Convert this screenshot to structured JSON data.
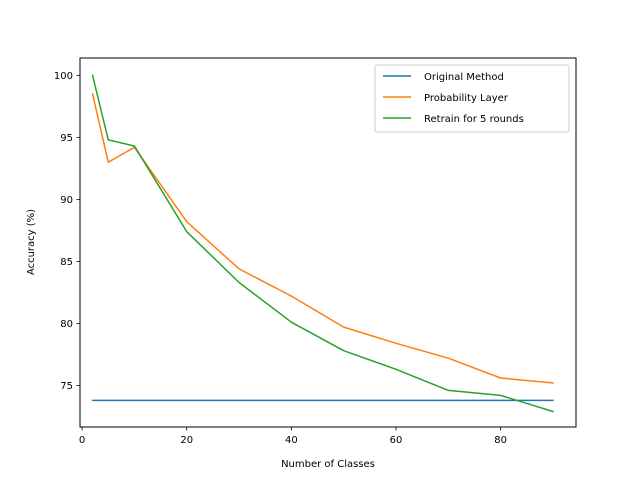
{
  "chart_data": {
    "type": "line",
    "xlabel": "Number of Classes",
    "ylabel": "Accuracy (%)",
    "xlim": [
      -0.4,
      94.4
    ],
    "ylim": [
      71.65,
      101.4
    ],
    "xticks": [
      0,
      20,
      40,
      60,
      80
    ],
    "yticks": [
      75,
      80,
      85,
      90,
      95,
      100
    ],
    "grid": false,
    "legend_position": "top-right",
    "series": [
      {
        "name": "Original Method",
        "color": "#1f77b4",
        "x": [
          2,
          90
        ],
        "y": [
          73.8,
          73.8
        ]
      },
      {
        "name": "Probability Layer",
        "color": "#ff7f0e",
        "x": [
          2,
          5,
          10,
          20,
          30,
          40,
          50,
          60,
          70,
          80,
          90
        ],
        "y": [
          98.5,
          93.0,
          94.2,
          88.2,
          84.4,
          82.2,
          79.7,
          78.4,
          77.2,
          75.6,
          75.2
        ]
      },
      {
        "name": "Retrain for 5 rounds",
        "color": "#2ca02c",
        "x": [
          2,
          5,
          10,
          20,
          30,
          40,
          50,
          60,
          70,
          80,
          90
        ],
        "y": [
          100.0,
          94.8,
          94.3,
          87.4,
          83.3,
          80.1,
          77.8,
          76.3,
          74.6,
          74.2,
          72.9
        ]
      }
    ]
  }
}
